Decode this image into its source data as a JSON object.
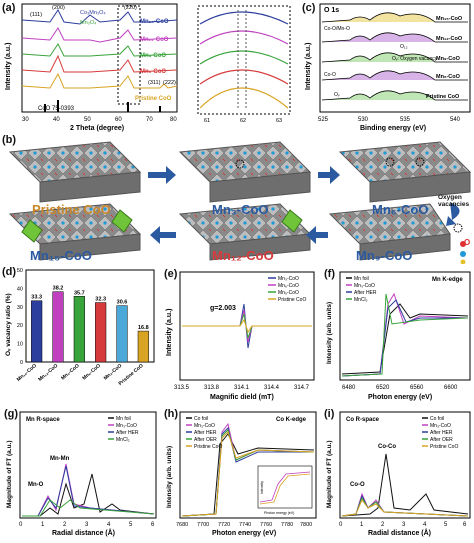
{
  "panels": {
    "a": {
      "label": "(a)",
      "ylabel": "Intensity (a.u.)",
      "xlabel": "2 Theta (degree)",
      "ticks": [
        "30",
        "40",
        "50",
        "60",
        "70",
        "80"
      ],
      "series": [
        "Mn₁₅-CoO",
        "Mn₁₂-CoO",
        "Mn₉-CoO",
        "Mn₆-CoO",
        "Pristine CoO"
      ],
      "peaks": [
        "(111)",
        "(200)",
        "(220)",
        "(311)",
        "(222)"
      ],
      "ref": "CoO 75-0393",
      "ann": [
        "Co₃Mn₃O₄",
        "Mn₃O₄"
      ]
    },
    "zoom": {
      "ticks": [
        "61",
        "62",
        "63"
      ]
    },
    "c": {
      "label": "(c)",
      "title": "O 1s",
      "ylabel": "Intensity (a.u.)",
      "xlabel": "Binding energy (eV)",
      "ticks": [
        "525",
        "530",
        "535",
        "540"
      ],
      "series": [
        "Mn₁₅-CoO",
        "Mn₁₂-CoO",
        "Mn₉-CoO",
        "Mn₆-CoO",
        "Pristine CoO"
      ],
      "ann": [
        "Co-O/Mn-O",
        "O₁₂",
        "Oᵥ: Oxygen vacancy",
        "Co-O",
        "Oᵥ"
      ]
    },
    "b": {
      "label": "(b)",
      "structures": [
        "Pristine CoO",
        "Mn₃-CoO",
        "Mn₆-CoO",
        "Mn₉-CoO",
        "Mn₁₂-CoO",
        "Mn₁₅-CoO"
      ],
      "legend_title": "Oxygen vacancies",
      "legend": [
        "O",
        "Co",
        "Mn"
      ]
    },
    "d": {
      "label": "(d)",
      "ylabel": "Oᵥ vacancy ratio (%)",
      "values": [
        33.3,
        38.2,
        35.7,
        32.3,
        30.6,
        16.8
      ],
      "value_labels": [
        "33.3",
        "38.2",
        "35.7",
        "32.3",
        "30.6",
        "16.8"
      ],
      "categories": [
        "Mn₁₅-CoO",
        "Mn₁₂-CoO",
        "Mn₉-CoO",
        "Mn₆-CoO",
        "Mn₃-CoO",
        "Pristine CoO"
      ],
      "yticks": [
        "0",
        "10",
        "20",
        "30",
        "40",
        "50"
      ],
      "colors": [
        "#2c3e9e",
        "#c040c0",
        "#39a33c",
        "#d63a3a",
        "#4aa9d9",
        "#d9a423"
      ]
    },
    "e": {
      "label": "(e)",
      "ylabel": "Intensity (a.u.)",
      "xlabel": "Magnific dield (mT)",
      "ticks": [
        "313.5",
        "313.8",
        "314.1",
        "314.4",
        "314.7"
      ],
      "gvalue": "g=2.003",
      "series": [
        "Mn₃-CoO",
        "Mn₆-CoO",
        "Mn₉-CoO",
        "Pristine CoO"
      ]
    },
    "f": {
      "label": "(f)",
      "title": "Mn K-edge",
      "ylabel": "Intensity (arb. units)",
      "xlabel": "Photon energy (eV)",
      "ticks": [
        "6480",
        "6520",
        "6560",
        "6600"
      ],
      "series": [
        "Mn foil",
        "Mn₃-CoO",
        "After HER",
        "MnCl₂"
      ]
    },
    "g": {
      "label": "(g)",
      "title": "Mn R-space",
      "ylabel": "Magnitude of FT (a.u.)",
      "xlabel": "Radial distance (Å)",
      "ticks": [
        "0",
        "1",
        "2",
        "3",
        "4",
        "5",
        "6"
      ],
      "series": [
        "Mn foil",
        "Mn₃-CoO",
        "After HER",
        "MnCl₂"
      ],
      "ann": [
        "Mn-Mn",
        "Mn-O"
      ]
    },
    "h": {
      "label": "(h)",
      "title": "Co K-edge",
      "ylabel": "Intensity (arb. units)",
      "xlabel": "Photon energy (eV)",
      "ticks": [
        "7680",
        "7700",
        "7720",
        "7740",
        "7760",
        "7780",
        "7800"
      ],
      "series": [
        "Co foil",
        "Mn₃-CoO",
        "After HER",
        "After OER",
        "Pristine CoO"
      ],
      "inset_x": "Photon energy (eV)",
      "inset_y": "Intensity"
    },
    "i": {
      "label": "(i)",
      "title": "Co R-space",
      "ylabel": "Magnitude of FT (a.u.)",
      "xlabel": "Radial distance (Å)",
      "ticks": [
        "0",
        "1",
        "2",
        "3",
        "4",
        "5",
        "6"
      ],
      "series": [
        "Co foil",
        "Mn₃-CoO",
        "After HER",
        "After OER",
        "Pristine CoO"
      ],
      "ann": [
        "Co-Co",
        "Co-O"
      ]
    }
  },
  "chart_data": [
    {
      "type": "bar",
      "title": "",
      "ylabel": "Oᵥ vacancy ratio (%)",
      "categories": [
        "Mn₁₅-CoO",
        "Mn₁₂-CoO",
        "Mn₉-CoO",
        "Mn₆-CoO",
        "Mn₃-CoO",
        "Pristine CoO"
      ],
      "values": [
        33.3,
        38.2,
        35.7,
        32.3,
        30.6,
        16.8
      ],
      "ylim": [
        0,
        50
      ]
    }
  ],
  "colors": {
    "blue": "#2c3e9e",
    "magenta": "#c040c0",
    "green": "#39a33c",
    "red": "#d63a3a",
    "black": "#111111",
    "gold": "#d9a423",
    "cyan": "#4aa9d9"
  }
}
